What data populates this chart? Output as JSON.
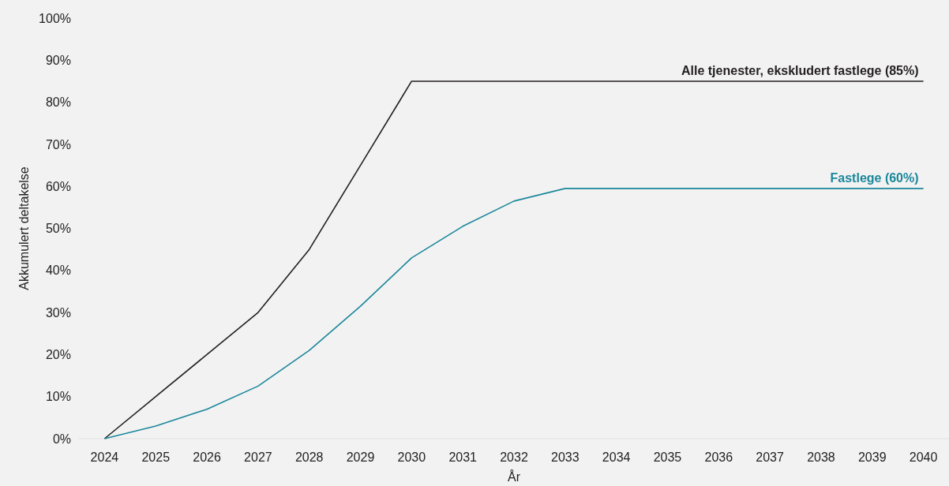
{
  "chart_data": {
    "type": "line",
    "xlabel": "År",
    "ylabel": "Akkumulert deltakelse",
    "categories": [
      "2024",
      "2025",
      "2026",
      "2027",
      "2028",
      "2029",
      "2030",
      "2031",
      "2032",
      "2033",
      "2034",
      "2035",
      "2036",
      "2037",
      "2038",
      "2039",
      "2040"
    ],
    "series": [
      {
        "name": "Alle tjenester, ekskludert fastlege (85%)",
        "color": "#231f20",
        "values": [
          0,
          10,
          20,
          30,
          45,
          65,
          85,
          85,
          85,
          85,
          85,
          85,
          85,
          85,
          85,
          85,
          85
        ]
      },
      {
        "name": "Fastlege (60%)",
        "color": "#1b879b",
        "values": [
          0,
          3,
          7,
          12.5,
          21,
          31.5,
          43,
          50.5,
          56.5,
          59.5,
          59.5,
          59.5,
          59.5,
          59.5,
          59.5,
          59.5,
          59.5
        ]
      }
    ],
    "ylim": [
      0,
      100
    ],
    "yticks": [
      {
        "value": 0,
        "label": "0%"
      },
      {
        "value": 10,
        "label": "10%"
      },
      {
        "value": 20,
        "label": "20%"
      },
      {
        "value": 30,
        "label": "30%"
      },
      {
        "value": 40,
        "label": "40%"
      },
      {
        "value": 50,
        "label": "50%"
      },
      {
        "value": 60,
        "label": "60%"
      },
      {
        "value": 70,
        "label": "70%"
      },
      {
        "value": 80,
        "label": "80%"
      },
      {
        "value": 90,
        "label": "90%"
      },
      {
        "value": 100,
        "label": "100%"
      }
    ],
    "grid": false,
    "legend": false,
    "marker": "none",
    "line_style": "solid"
  }
}
